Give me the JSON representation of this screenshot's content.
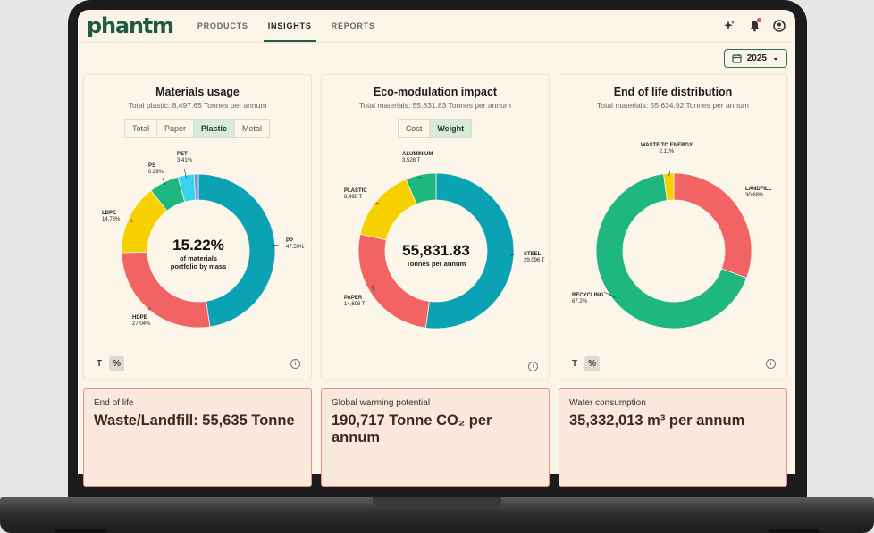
{
  "app": {
    "logo": "phantm"
  },
  "nav": [
    {
      "label": "PRODUCTS",
      "active": false
    },
    {
      "label": "INSIGHTS",
      "active": true
    },
    {
      "label": "REPORTS",
      "active": false
    }
  ],
  "toolbar": {
    "year": "2025"
  },
  "materials_card": {
    "title": "Materials usage",
    "subtitle": "Total plastic: 8,497.65 Tonnes per annum",
    "tabs": [
      "Total",
      "Paper",
      "Plastic",
      "Metal"
    ],
    "active_tab": "Plastic",
    "center_value": "15.22%",
    "center_sub1": "of materials",
    "center_sub2": "portfolio by mass",
    "units": [
      "T",
      "%"
    ],
    "active_unit": "%"
  },
  "eco_card": {
    "title": "Eco-modulation impact",
    "subtitle": "Total materials: 55,831.83 Tonnes per annum",
    "tabs": [
      "Cost",
      "Weight"
    ],
    "active_tab": "Weight",
    "center_value": "55,831.83",
    "center_sub1": "Tonnes per annum"
  },
  "eol_card": {
    "title": "End of life distribution",
    "subtitle": "Total materials: 55,634.92 Tonnes per annum",
    "units": [
      "T",
      "%"
    ],
    "active_unit": "%"
  },
  "chart_data": [
    {
      "type": "pie",
      "title": "Materials usage",
      "slices": [
        {
          "name": "PP",
          "value": 47.59,
          "label": "47.59%",
          "color": "#0ba3b3"
        },
        {
          "name": "HDPE",
          "value": 27.04,
          "label": "27.04%",
          "color": "#f26464"
        },
        {
          "name": "LDPE",
          "value": 14.78,
          "label": "14.78%",
          "color": "#f7d000"
        },
        {
          "name": "PS",
          "value": 6.29,
          "label": "6.29%",
          "color": "#1fb780"
        },
        {
          "name": "PET",
          "value": 3.41,
          "label": "3.41%",
          "color": "#37d2ef"
        },
        {
          "name": "",
          "value": 0.89,
          "label": "",
          "color": "#6c8fd8"
        }
      ]
    },
    {
      "type": "pie",
      "title": "Eco-modulation impact",
      "slices": [
        {
          "name": "STEEL",
          "value": 29096,
          "label": "29,096 T",
          "color": "#0ba3b3"
        },
        {
          "name": "PAPER",
          "value": 14698,
          "label": "14,698 T",
          "color": "#f26464"
        },
        {
          "name": "PLASTIC",
          "value": 8498,
          "label": "8,498 T",
          "color": "#f7d000"
        },
        {
          "name": "ALUMINIUM",
          "value": 3528,
          "label": "3,528 T",
          "color": "#1fb780"
        }
      ]
    },
    {
      "type": "pie",
      "title": "End of life distribution",
      "slices": [
        {
          "name": "LANDFILL",
          "value": 30.68,
          "label": "30.68%",
          "color": "#f26464"
        },
        {
          "name": "RECYCLING",
          "value": 67.2,
          "label": "67.2%",
          "color": "#1fb780"
        },
        {
          "name": "WASTE TO ENERGY",
          "value": 2.11,
          "label": "2.11%",
          "color": "#f7d000"
        }
      ]
    }
  ],
  "metrics": [
    {
      "label": "End of life",
      "value": "Waste/Landfill: 55,635 Tonne"
    },
    {
      "label": "Global warming potential",
      "value": "190,717 Tonne CO₂ per annum"
    },
    {
      "label": "Water consumption",
      "value": "35,332,013 m³ per annum"
    }
  ]
}
